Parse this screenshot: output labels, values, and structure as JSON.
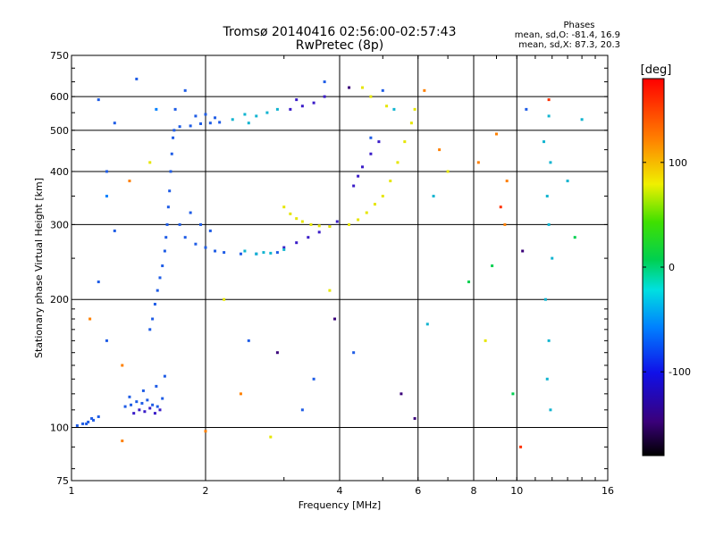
{
  "chart_data": {
    "type": "scatter",
    "title": "Tromsø 20140416 02:56:00-02:57:43",
    "subtitle": "RwPretec (8p)",
    "xlabel": "Frequency [MHz]",
    "ylabel": "Stationary phase Virtual Height [km]",
    "x_scale": "log",
    "y_scale": "log",
    "xlim": [
      1,
      16
    ],
    "ylim": [
      75,
      750
    ],
    "x_ticks": [
      1,
      2,
      4,
      6,
      8,
      10,
      16
    ],
    "y_ticks": [
      75,
      100,
      200,
      300,
      400,
      500,
      600,
      750
    ],
    "grid": true,
    "stats_title": "Phases",
    "stats": [
      "mean, sd,O: -81.4, 16.9",
      "mean, sd,X:  87.3, 20.3"
    ],
    "colorbar": {
      "label": "[deg]",
      "range": [
        -180,
        180
      ],
      "ticks": [
        100,
        0,
        -100
      ],
      "colors": [
        "#000000",
        "#3a007a",
        "#1010e8",
        "#0080ff",
        "#00e0e0",
        "#00d050",
        "#40e000",
        "#f0f000",
        "#ff8000",
        "#ff0000"
      ]
    },
    "series": [
      {
        "color": "#1e5ce6",
        "points": [
          [
            1.03,
            101
          ],
          [
            1.06,
            102
          ],
          [
            1.09,
            103
          ],
          [
            1.12,
            104
          ],
          [
            1.15,
            106
          ],
          [
            1.08,
            102
          ],
          [
            1.11,
            105
          ],
          [
            1.32,
            112
          ],
          [
            1.36,
            113
          ],
          [
            1.4,
            115
          ],
          [
            1.44,
            114
          ],
          [
            1.48,
            116
          ],
          [
            1.52,
            113
          ],
          [
            1.56,
            112
          ],
          [
            1.6,
            117
          ],
          [
            1.35,
            118
          ],
          [
            1.45,
            122
          ],
          [
            1.55,
            125
          ],
          [
            1.62,
            132
          ],
          [
            1.5,
            170
          ],
          [
            1.52,
            180
          ],
          [
            1.54,
            195
          ],
          [
            1.56,
            210
          ],
          [
            1.58,
            225
          ],
          [
            1.6,
            240
          ],
          [
            1.62,
            260
          ],
          [
            1.63,
            280
          ],
          [
            1.64,
            300
          ],
          [
            1.65,
            330
          ],
          [
            1.66,
            360
          ],
          [
            1.67,
            400
          ],
          [
            1.68,
            440
          ],
          [
            1.69,
            480
          ],
          [
            1.7,
            500
          ],
          [
            1.71,
            560
          ],
          [
            1.75,
            510
          ],
          [
            1.85,
            512
          ],
          [
            1.95,
            518
          ],
          [
            2.05,
            520
          ],
          [
            2.15,
            522
          ],
          [
            1.9,
            540
          ],
          [
            2.0,
            545
          ],
          [
            2.1,
            535
          ],
          [
            1.75,
            300
          ],
          [
            1.8,
            280
          ],
          [
            1.9,
            270
          ],
          [
            2.0,
            265
          ],
          [
            2.1,
            260
          ],
          [
            2.2,
            258
          ],
          [
            2.4,
            256
          ],
          [
            2.6,
            256
          ],
          [
            2.9,
            258
          ],
          [
            1.95,
            300
          ],
          [
            2.05,
            290
          ],
          [
            1.85,
            320
          ]
        ]
      },
      {
        "color": "#3a1cc8",
        "points": [
          [
            1.38,
            108
          ],
          [
            1.42,
            110
          ],
          [
            1.46,
            109
          ],
          [
            1.5,
            111
          ],
          [
            1.54,
            108
          ],
          [
            1.58,
            110
          ],
          [
            3.0,
            265
          ],
          [
            3.2,
            272
          ],
          [
            3.4,
            280
          ],
          [
            3.6,
            288
          ],
          [
            3.8,
            298
          ],
          [
            3.95,
            305
          ],
          [
            3.1,
            560
          ],
          [
            3.3,
            570
          ],
          [
            3.5,
            580
          ],
          [
            3.7,
            600
          ],
          [
            3.2,
            590
          ],
          [
            4.3,
            370
          ],
          [
            4.5,
            410
          ],
          [
            4.7,
            440
          ],
          [
            4.9,
            470
          ],
          [
            4.4,
            390
          ]
        ]
      },
      {
        "color": "#10b4d0",
        "points": [
          [
            2.3,
            530
          ],
          [
            2.45,
            545
          ],
          [
            2.6,
            540
          ],
          [
            2.75,
            550
          ],
          [
            2.9,
            560
          ],
          [
            2.5,
            520
          ],
          [
            2.6,
            256
          ],
          [
            2.8,
            257
          ],
          [
            3.0,
            262
          ],
          [
            2.45,
            260
          ],
          [
            2.7,
            258
          ]
        ]
      },
      {
        "color": "#e6e600",
        "points": [
          [
            3.0,
            330
          ],
          [
            3.1,
            318
          ],
          [
            3.2,
            310
          ],
          [
            3.3,
            305
          ],
          [
            3.45,
            300
          ],
          [
            3.6,
            298
          ],
          [
            3.8,
            297
          ],
          [
            4.2,
            300
          ],
          [
            4.4,
            308
          ],
          [
            4.6,
            320
          ],
          [
            4.8,
            335
          ],
          [
            5.0,
            350
          ],
          [
            5.2,
            380
          ],
          [
            5.4,
            420
          ],
          [
            5.6,
            470
          ],
          [
            5.8,
            520
          ],
          [
            5.9,
            560
          ],
          [
            4.5,
            630
          ],
          [
            4.7,
            600
          ],
          [
            5.1,
            570
          ]
        ]
      }
    ],
    "scatter_points": [
      [
        1.15,
        590,
        "#1e5ce6"
      ],
      [
        1.25,
        520,
        "#1e5ce6"
      ],
      [
        1.4,
        660,
        "#1e5ce6"
      ],
      [
        1.55,
        560,
        "#0080ff"
      ],
      [
        1.8,
        620,
        "#1e5ce6"
      ],
      [
        3.7,
        650,
        "#1e5ce6"
      ],
      [
        4.2,
        630,
        "#3a007a"
      ],
      [
        5.0,
        620,
        "#1e5ce6"
      ],
      [
        6.2,
        620,
        "#ff8000"
      ],
      [
        10.5,
        560,
        "#1e5ce6"
      ],
      [
        11.8,
        540,
        "#10b4d0"
      ],
      [
        11.8,
        590,
        "#ff3000"
      ],
      [
        14.0,
        530,
        "#10b4d0"
      ],
      [
        9.0,
        490,
        "#ff8000"
      ],
      [
        11.5,
        470,
        "#10b4d0"
      ],
      [
        11.9,
        420,
        "#10b4d0"
      ],
      [
        13.0,
        380,
        "#10b4d0"
      ],
      [
        11.7,
        350,
        "#10b4d0"
      ],
      [
        11.8,
        300,
        "#10b4d0"
      ],
      [
        12.0,
        250,
        "#10b4d0"
      ],
      [
        11.6,
        200,
        "#10b4d0"
      ],
      [
        11.8,
        160,
        "#10b4d0"
      ],
      [
        11.7,
        130,
        "#10b4d0"
      ],
      [
        11.9,
        110,
        "#10b4d0"
      ],
      [
        13.5,
        280,
        "#00d050"
      ],
      [
        9.5,
        380,
        "#ff8000"
      ],
      [
        10.3,
        260,
        "#3a007a"
      ],
      [
        7.0,
        400,
        "#e6e600"
      ],
      [
        6.5,
        350,
        "#10b4d0"
      ],
      [
        1.2,
        400,
        "#1e5ce6"
      ],
      [
        1.2,
        350,
        "#0080ff"
      ],
      [
        1.25,
        290,
        "#1e5ce6"
      ],
      [
        1.15,
        220,
        "#1e5ce6"
      ],
      [
        1.2,
        160,
        "#1e5ce6"
      ],
      [
        1.3,
        140,
        "#ff8000"
      ],
      [
        1.35,
        380,
        "#ff8000"
      ],
      [
        1.1,
        180,
        "#ff8000"
      ],
      [
        1.5,
        420,
        "#e6e600"
      ],
      [
        2.2,
        200,
        "#e6e600"
      ],
      [
        2.5,
        160,
        "#1e5ce6"
      ],
      [
        2.9,
        150,
        "#3a007a"
      ],
      [
        3.5,
        130,
        "#1e5ce6"
      ],
      [
        3.9,
        180,
        "#3a007a"
      ],
      [
        4.3,
        150,
        "#1e5ce6"
      ],
      [
        5.5,
        120,
        "#3a007a"
      ],
      [
        5.9,
        105,
        "#3a007a"
      ],
      [
        6.3,
        175,
        "#10b4d0"
      ],
      [
        7.8,
        220,
        "#00d050"
      ],
      [
        8.5,
        160,
        "#e6e600"
      ],
      [
        9.8,
        120,
        "#00d050"
      ],
      [
        10.2,
        90,
        "#ff3000"
      ],
      [
        3.3,
        110,
        "#1e5ce6"
      ],
      [
        2.4,
        120,
        "#ff8000"
      ],
      [
        2.0,
        98,
        "#ff8000"
      ],
      [
        1.3,
        93,
        "#ff8000"
      ],
      [
        2.8,
        95,
        "#e6e600"
      ],
      [
        4.7,
        480,
        "#1e5ce6"
      ],
      [
        5.3,
        560,
        "#10b4d0"
      ],
      [
        6.7,
        450,
        "#ff8000"
      ],
      [
        8.2,
        420,
        "#ff8000"
      ],
      [
        9.2,
        330,
        "#ff3000"
      ],
      [
        9.4,
        300,
        "#ff8000"
      ],
      [
        8.8,
        240,
        "#00d050"
      ],
      [
        3.8,
        210,
        "#e6e600"
      ]
    ]
  }
}
